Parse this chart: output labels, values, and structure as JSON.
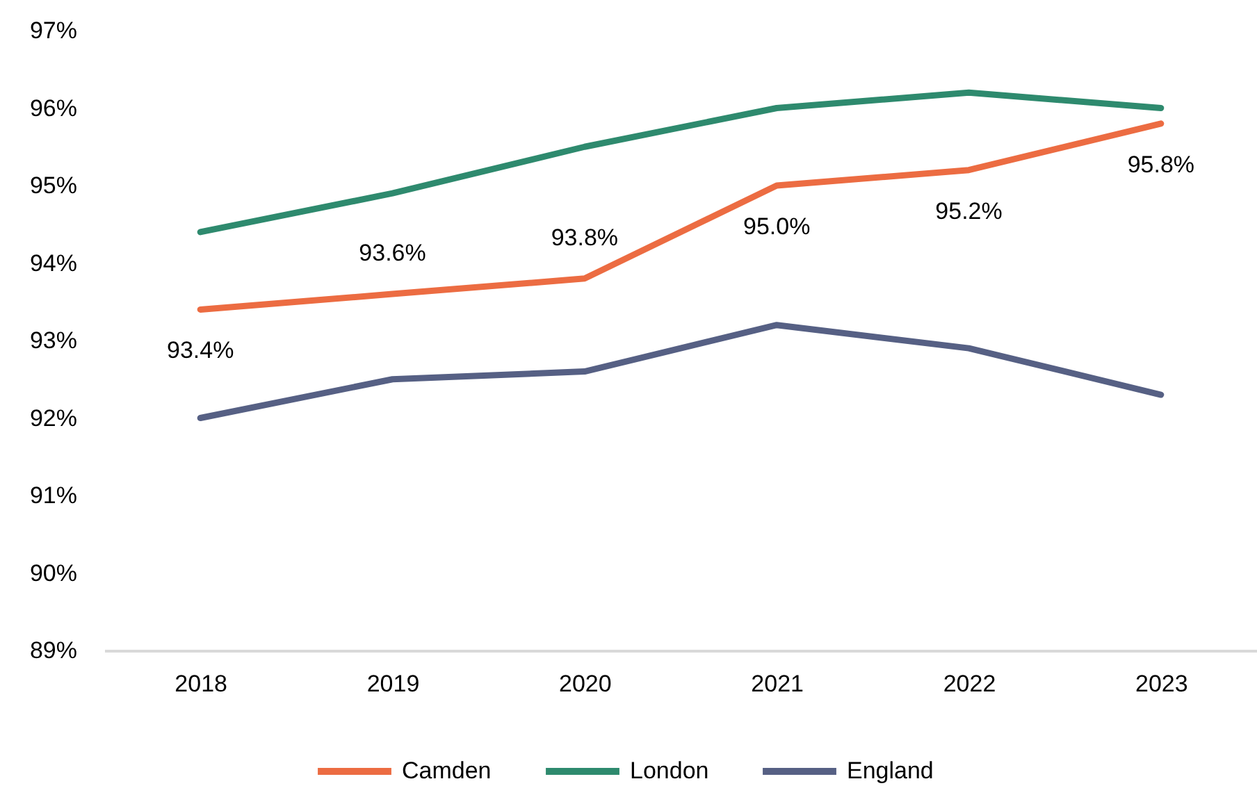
{
  "chart_data": {
    "type": "line",
    "categories": [
      "2018",
      "2019",
      "2020",
      "2021",
      "2022",
      "2023"
    ],
    "series": [
      {
        "name": "Camden",
        "color": "#ec6c42",
        "values": [
          93.4,
          93.6,
          93.8,
          95.0,
          95.2,
          95.8
        ],
        "value_labels": [
          "93.4%",
          "93.6%",
          "93.8%",
          "95.0%",
          "95.2%",
          "95.8%"
        ]
      },
      {
        "name": "London",
        "color": "#2e8a6e",
        "values": [
          94.4,
          94.9,
          95.5,
          96.0,
          96.2,
          96.0
        ]
      },
      {
        "name": "England",
        "color": "#566084",
        "values": [
          92.0,
          92.5,
          92.6,
          93.2,
          92.9,
          92.3
        ]
      }
    ],
    "ylim": [
      89,
      97
    ],
    "yticks": [
      {
        "value": 89,
        "label": "89%"
      },
      {
        "value": 90,
        "label": "90%"
      },
      {
        "value": 91,
        "label": "91%"
      },
      {
        "value": 92,
        "label": "92%"
      },
      {
        "value": 93,
        "label": "93%"
      },
      {
        "value": 94,
        "label": "94%"
      },
      {
        "value": 95,
        "label": "95%"
      },
      {
        "value": 96,
        "label": "96%"
      },
      {
        "value": 97,
        "label": "97%"
      }
    ],
    "legend": "bottom"
  }
}
